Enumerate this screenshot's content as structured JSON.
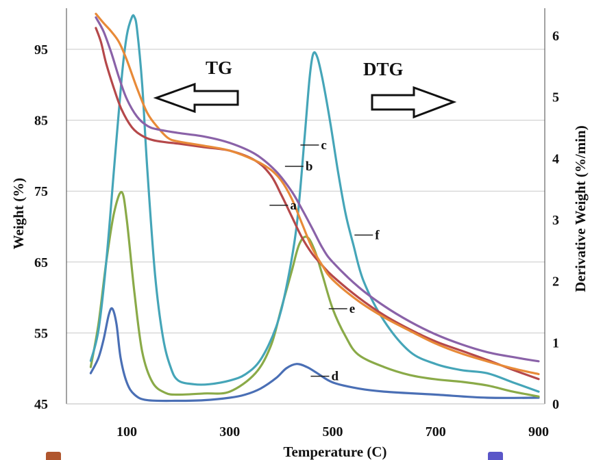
{
  "chart_data": {
    "type": "line",
    "xlabel": "Temperature (C)",
    "ylabel_left": "Weight (%)",
    "ylabel_right": "Derivative Weight (%/min)",
    "xlim": [
      -20,
      900
    ],
    "ylim_left": [
      45,
      100
    ],
    "ylim_right": [
      0,
      6.5
    ],
    "x_ticks": [
      "100",
      "300",
      "500",
      "700",
      "900"
    ],
    "x_tick_values": [
      100,
      300,
      500,
      700,
      900
    ],
    "y_left_ticks": [
      "45",
      "55",
      "65",
      "75",
      "85",
      "95"
    ],
    "y_left_tick_values": [
      45,
      55,
      65,
      75,
      85,
      95
    ],
    "y_right_ticks": [
      "0",
      "1",
      "2",
      "3",
      "4",
      "5",
      "6"
    ],
    "y_right_tick_values": [
      0,
      1,
      2,
      3,
      4,
      5,
      6
    ],
    "grid": "horizontal",
    "annotations": {
      "tg": "TG",
      "dtg": "DTG"
    },
    "series": [
      {
        "name": "a",
        "axis": "left",
        "color": "#b5484a",
        "label_at": [
          380,
          73
        ],
        "label_side": "left",
        "x": [
          40,
          50,
          60,
          75,
          90,
          110,
          130,
          150,
          175,
          200,
          250,
          300,
          350,
          380,
          400,
          420,
          440,
          460,
          480,
          500,
          550,
          600,
          650,
          700,
          750,
          800,
          850,
          900
        ],
        "y": [
          98,
          96,
          93,
          89.5,
          86.5,
          84,
          82.8,
          82.2,
          81.9,
          81.7,
          81.2,
          80.7,
          79.3,
          77.2,
          74.5,
          71.5,
          68.5,
          66.2,
          64.5,
          63,
          60,
          57.5,
          55.5,
          53.8,
          52.5,
          51.2,
          49.8,
          48.5
        ]
      },
      {
        "name": "b",
        "axis": "left",
        "color": "#e88a38",
        "label_at": [
          410,
          78.5
        ],
        "label_side": "left",
        "x": [
          40,
          55,
          70,
          85,
          100,
          120,
          140,
          160,
          180,
          200,
          250,
          300,
          350,
          380,
          400,
          420,
          440,
          460,
          480,
          500,
          550,
          600,
          650,
          700,
          750,
          800,
          850,
          900
        ],
        "y": [
          100,
          98.7,
          97.5,
          96,
          93.5,
          89.5,
          86,
          84,
          82.5,
          82,
          81.4,
          80.7,
          79.3,
          78,
          76.5,
          74,
          70.5,
          67,
          64.5,
          62.5,
          59.5,
          57.2,
          55.3,
          53.5,
          52.1,
          51,
          50,
          49.2
        ]
      },
      {
        "name": "c",
        "axis": "left",
        "color": "#8a62a8",
        "label_at": [
          440,
          81.5
        ],
        "label_side": "left",
        "x": [
          40,
          55,
          70,
          85,
          100,
          120,
          140,
          160,
          200,
          250,
          300,
          350,
          390,
          420,
          440,
          460,
          480,
          500,
          550,
          600,
          650,
          700,
          750,
          800,
          850,
          900
        ],
        "y": [
          99.5,
          97.5,
          94.5,
          91,
          88,
          85.5,
          84.2,
          83.7,
          83.2,
          82.7,
          81.8,
          80.2,
          77.8,
          75,
          72.5,
          69.8,
          67,
          65,
          61.5,
          58.8,
          56.6,
          54.8,
          53.4,
          52.3,
          51.6,
          51
        ]
      },
      {
        "name": "d",
        "axis": "right",
        "color": "#4a6fb5",
        "label_at": [
          460,
          0.45
        ],
        "label_side": "left",
        "x": [
          30,
          45,
          55,
          65,
          72,
          80,
          88,
          100,
          115,
          140,
          200,
          250,
          300,
          330,
          360,
          390,
          410,
          430,
          450,
          470,
          500,
          550,
          600,
          700,
          800,
          900
        ],
        "y": [
          0.5,
          0.75,
          1.05,
          1.45,
          1.55,
          1.3,
          0.75,
          0.35,
          0.15,
          0.06,
          0.05,
          0.06,
          0.1,
          0.15,
          0.25,
          0.42,
          0.58,
          0.65,
          0.6,
          0.5,
          0.35,
          0.25,
          0.2,
          0.15,
          0.1,
          0.1
        ]
      },
      {
        "name": "e",
        "axis": "right",
        "color": "#8aaa48",
        "label_at": [
          495,
          1.55
        ],
        "label_side": "left",
        "x": [
          30,
          45,
          60,
          75,
          90,
          100,
          115,
          130,
          150,
          175,
          200,
          250,
          300,
          350,
          380,
          400,
          420,
          435,
          450,
          465,
          480,
          500,
          525,
          550,
          600,
          650,
          700,
          750,
          800,
          850,
          900
        ],
        "y": [
          0.6,
          1.3,
          2.3,
          3.1,
          3.45,
          3.0,
          1.8,
          0.85,
          0.35,
          0.18,
          0.15,
          0.17,
          0.2,
          0.5,
          0.95,
          1.55,
          2.15,
          2.6,
          2.72,
          2.5,
          2.1,
          1.55,
          1.1,
          0.8,
          0.6,
          0.47,
          0.4,
          0.36,
          0.3,
          0.2,
          0.12
        ]
      },
      {
        "name": "f",
        "axis": "right",
        "color": "#45a5b8",
        "label_at": [
          545,
          2.75
        ],
        "label_side": "left",
        "x": [
          30,
          45,
          60,
          75,
          90,
          100,
          110,
          115,
          120,
          130,
          140,
          155,
          170,
          185,
          200,
          230,
          260,
          300,
          330,
          360,
          390,
          410,
          430,
          445,
          455,
          462,
          470,
          480,
          495,
          510,
          525,
          540,
          560,
          600,
          650,
          700,
          750,
          800,
          850,
          900
        ],
        "y": [
          0.7,
          1.2,
          2.3,
          3.8,
          5.3,
          6.0,
          6.3,
          6.3,
          6.1,
          5.2,
          3.8,
          2.1,
          1.1,
          0.6,
          0.38,
          0.32,
          0.32,
          0.38,
          0.48,
          0.72,
          1.25,
          1.9,
          2.9,
          4.3,
          5.3,
          5.7,
          5.65,
          5.3,
          4.6,
          3.8,
          3.1,
          2.6,
          2.0,
          1.35,
          0.85,
          0.65,
          0.55,
          0.5,
          0.35,
          0.2
        ]
      }
    ]
  }
}
